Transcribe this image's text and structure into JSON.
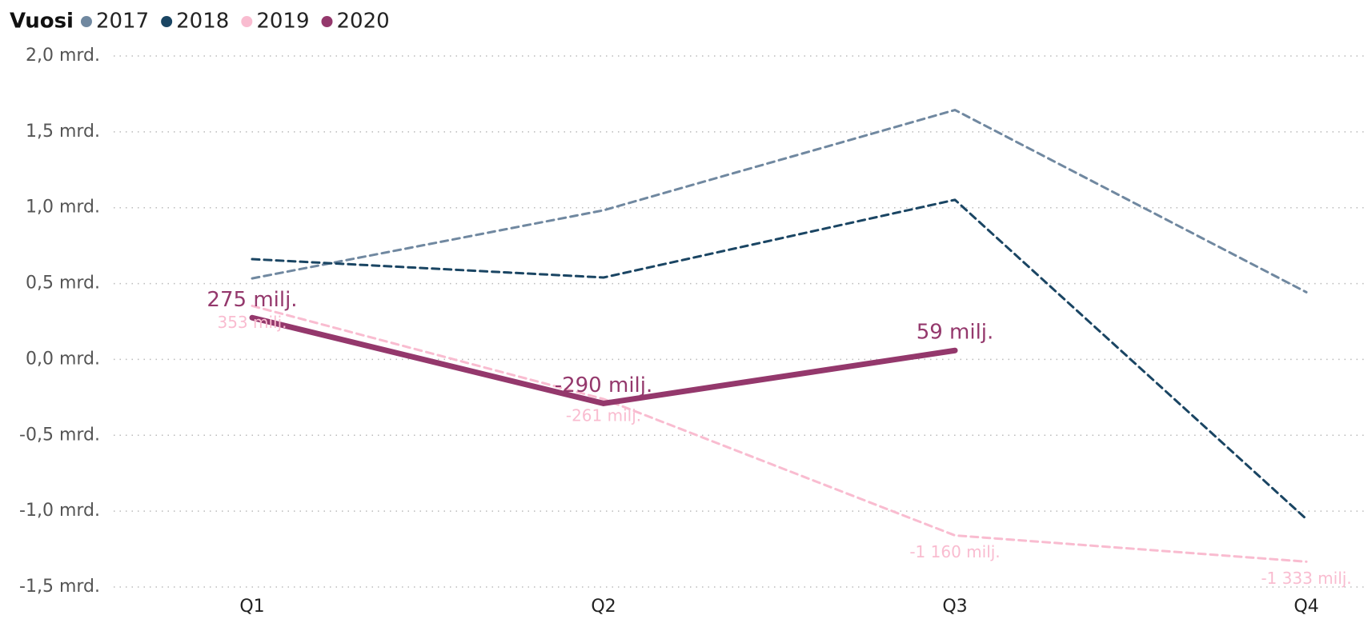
{
  "chart_data": {
    "type": "line",
    "legend_title": "Vuosi",
    "categories": [
      "Q1",
      "Q2",
      "Q3",
      "Q4"
    ],
    "series": [
      {
        "name": "2017",
        "color": "#7088a0",
        "dash": true,
        "width": 3,
        "values": [
          0.534,
          0.983,
          1.644,
          0.443
        ]
      },
      {
        "name": "2018",
        "color": "#1a4563",
        "dash": true,
        "width": 3,
        "values": [
          0.661,
          0.54,
          1.052,
          -1.052
        ]
      },
      {
        "name": "2019",
        "color": "#f9bcd0",
        "dash": true,
        "width": 3,
        "label_position": "below",
        "values": [
          0.353,
          -0.261,
          -1.16,
          -1.333
        ],
        "value_labels": [
          "353 milj.",
          "-261 milj.",
          "-1 160 milj.",
          "-1 333 milj."
        ]
      },
      {
        "name": "2020",
        "color": "#94386c",
        "dash": false,
        "width": 7,
        "label_position": "above",
        "values": [
          0.275,
          -0.29,
          0.059,
          null
        ],
        "value_labels": [
          "275 milj.",
          "-290 milj.",
          "59 milj.",
          null
        ]
      }
    ],
    "ylim": [
      -1.5,
      2.0
    ],
    "yticks": [
      {
        "value": -1.5,
        "label": "-1,5 mrd."
      },
      {
        "value": -1.0,
        "label": "-1,0 mrd."
      },
      {
        "value": -0.5,
        "label": "-0,5 mrd."
      },
      {
        "value": 0.0,
        "label": "0,0 mrd."
      },
      {
        "value": 0.5,
        "label": "0,5 mrd."
      },
      {
        "value": 1.0,
        "label": "1,0 mrd."
      },
      {
        "value": 1.5,
        "label": "1,5 mrd."
      },
      {
        "value": 2.0,
        "label": "2,0 mrd."
      }
    ],
    "grid": true
  }
}
